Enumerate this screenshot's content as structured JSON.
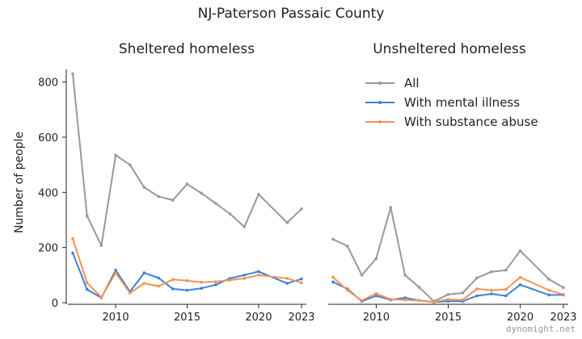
{
  "suptitle": "NJ-Paterson Passaic County",
  "ylabel": "Number of people",
  "watermark": "dynomight.net",
  "legend": [
    {
      "label": "All",
      "color": "#999999"
    },
    {
      "label": "With mental illness",
      "color": "#3b82d6"
    },
    {
      "label": "With substance abuse",
      "color": "#f59252"
    }
  ],
  "chart_data": [
    {
      "type": "line",
      "title": "Sheltered homeless",
      "xlabel": "",
      "ylabel": "Number of people",
      "xlim": [
        2007,
        2023
      ],
      "ylim": [
        0,
        840
      ],
      "x_ticks": [
        2010,
        2015,
        2020,
        2023
      ],
      "y_ticks": [
        0,
        200,
        400,
        600,
        800
      ],
      "x": [
        2007,
        2008,
        2009,
        2010,
        2011,
        2012,
        2013,
        2014,
        2015,
        2016,
        2017,
        2018,
        2019,
        2020,
        2022,
        2023
      ],
      "series": [
        {
          "name": "All",
          "color": "#999999",
          "values": [
            830,
            315,
            207,
            535,
            500,
            418,
            385,
            372,
            430,
            397,
            360,
            322,
            275,
            393,
            290,
            340
          ]
        },
        {
          "name": "With mental illness",
          "color": "#3b82d6",
          "values": [
            180,
            48,
            18,
            118,
            40,
            108,
            90,
            50,
            45,
            52,
            65,
            88,
            100,
            113,
            70,
            86
          ]
        },
        {
          "name": "With substance abuse",
          "color": "#f59252",
          "values": [
            232,
            72,
            20,
            108,
            35,
            70,
            60,
            84,
            80,
            74,
            76,
            82,
            88,
            100,
            88,
            72
          ]
        }
      ]
    },
    {
      "type": "line",
      "title": "Unsheltered homeless",
      "xlabel": "",
      "ylabel": "",
      "xlim": [
        2007,
        2023
      ],
      "ylim": [
        0,
        840
      ],
      "x_ticks": [
        2010,
        2015,
        2020,
        2023
      ],
      "y_ticks": [],
      "x": [
        2007,
        2008,
        2009,
        2010,
        2011,
        2012,
        2013,
        2014,
        2015,
        2016,
        2017,
        2018,
        2019,
        2020,
        2022,
        2023
      ],
      "series": [
        {
          "name": "All",
          "color": "#999999",
          "values": [
            230,
            205,
            100,
            160,
            345,
            100,
            55,
            5,
            30,
            35,
            90,
            112,
            118,
            188,
            85,
            55
          ]
        },
        {
          "name": "With mental illness",
          "color": "#3b82d6",
          "values": [
            75,
            50,
            5,
            25,
            10,
            18,
            8,
            2,
            5,
            5,
            25,
            32,
            25,
            65,
            28,
            28
          ]
        },
        {
          "name": "With substance abuse",
          "color": "#f59252",
          "values": [
            92,
            45,
            8,
            33,
            12,
            10,
            8,
            3,
            12,
            10,
            50,
            45,
            48,
            92,
            45,
            30
          ]
        }
      ]
    }
  ]
}
